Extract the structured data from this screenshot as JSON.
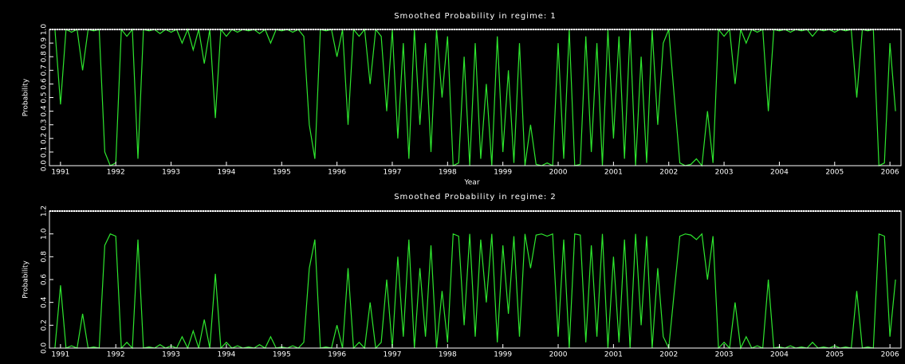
{
  "chart_data": [
    {
      "type": "line",
      "title": "Smoothed Probability in regime:  1",
      "x_label": "Year",
      "y_label": "Probability",
      "xlim": [
        1990.8,
        2006.2
      ],
      "ylim": [
        0,
        1
      ],
      "xticks": [
        1991,
        1992,
        1993,
        1994,
        1995,
        1996,
        1997,
        1998,
        1999,
        2000,
        2001,
        2002,
        2003,
        2004,
        2005,
        2006
      ],
      "yticks": [
        {
          "value": 0,
          "label": "0.0"
        },
        0.1,
        0.2,
        0.3,
        0.4,
        0.5,
        0.6,
        0.7,
        0.8,
        0.9,
        {
          "value": 1,
          "label": "1.0"
        }
      ],
      "x": [
        1990.9,
        1991.0,
        1991.1,
        1991.2,
        1991.3,
        1991.4,
        1991.5,
        1991.6,
        1991.7,
        1991.8,
        1991.9,
        1992.0,
        1992.1,
        1992.2,
        1992.3,
        1992.4,
        1992.5,
        1992.6,
        1992.7,
        1992.8,
        1992.9,
        1993.0,
        1993.1,
        1993.2,
        1993.3,
        1993.4,
        1993.5,
        1993.6,
        1993.7,
        1993.8,
        1993.9,
        1994.0,
        1994.1,
        1994.2,
        1994.3,
        1994.4,
        1994.5,
        1994.6,
        1994.7,
        1994.8,
        1994.9,
        1995.0,
        1995.1,
        1995.2,
        1995.3,
        1995.4,
        1995.5,
        1995.6,
        1995.7,
        1995.8,
        1995.9,
        1996.0,
        1996.1,
        1996.2,
        1996.3,
        1996.4,
        1996.5,
        1996.6,
        1996.7,
        1996.8,
        1996.9,
        1997.0,
        1997.1,
        1997.2,
        1997.3,
        1997.4,
        1997.5,
        1997.6,
        1997.7,
        1997.8,
        1997.9,
        1998.0,
        1998.1,
        1998.2,
        1998.3,
        1998.4,
        1998.5,
        1998.6,
        1998.7,
        1998.8,
        1998.9,
        1999.0,
        1999.1,
        1999.2,
        1999.3,
        1999.4,
        1999.5,
        1999.6,
        1999.7,
        1999.8,
        1999.9,
        2000.0,
        2000.1,
        2000.2,
        2000.3,
        2000.4,
        2000.5,
        2000.6,
        2000.7,
        2000.8,
        2000.9,
        2001.0,
        2001.1,
        2001.2,
        2001.3,
        2001.4,
        2001.5,
        2001.6,
        2001.7,
        2001.8,
        2001.9,
        2002.0,
        2002.1,
        2002.2,
        2002.3,
        2002.4,
        2002.5,
        2002.6,
        2002.7,
        2002.8,
        2002.9,
        2003.0,
        2003.1,
        2003.2,
        2003.3,
        2003.4,
        2003.5,
        2003.6,
        2003.7,
        2003.8,
        2003.9,
        2004.0,
        2004.1,
        2004.2,
        2004.3,
        2004.4,
        2004.5,
        2004.6,
        2004.7,
        2004.8,
        2004.9,
        2005.0,
        2005.1,
        2005.2,
        2005.3,
        2005.4,
        2005.5,
        2005.6,
        2005.7,
        2005.8,
        2005.9,
        2006.0,
        2006.1
      ],
      "series": [
        {
          "color": "#2ee62e",
          "values": [
            1,
            0.45,
            1,
            0.98,
            1,
            0.7,
            1,
            0.99,
            1,
            0.1,
            0,
            0.02,
            1,
            0.95,
            1,
            0.05,
            1,
            0.99,
            1,
            0.97,
            1,
            0.98,
            1,
            0.9,
            1,
            0.85,
            1,
            0.75,
            1,
            0.35,
            1,
            0.95,
            1,
            0.98,
            1,
            0.99,
            1,
            0.97,
            1,
            0.9,
            1,
            0.99,
            1,
            0.98,
            1,
            0.95,
            0.3,
            0.05,
            1,
            0.99,
            1,
            0.8,
            1,
            0.3,
            1,
            0.95,
            1,
            0.6,
            1,
            0.95,
            0.4,
            1,
            0.2,
            0.9,
            0.05,
            1,
            0.3,
            0.9,
            0.1,
            1,
            0.5,
            0.95,
            0,
            0.02,
            0.8,
            0,
            0.9,
            0.05,
            0.6,
            0,
            0.95,
            0.1,
            0.7,
            0.02,
            0.9,
            0,
            0.3,
            0.01,
            0,
            0.02,
            0,
            0.9,
            0.05,
            1,
            0,
            0.01,
            0.95,
            0.1,
            0.9,
            0,
            1,
            0.2,
            0.95,
            0.05,
            1,
            0,
            0.8,
            0.02,
            1,
            0.3,
            0.9,
            1,
            0.5,
            0.02,
            0,
            0.01,
            0.05,
            0,
            0.4,
            0.02,
            1,
            0.95,
            1,
            0.6,
            1,
            0.9,
            1,
            0.98,
            1,
            0.4,
            1,
            0.99,
            1,
            0.98,
            1,
            0.99,
            1,
            0.95,
            1,
            0.99,
            1,
            0.98,
            1,
            0.99,
            1,
            0.5,
            1,
            0.99,
            1,
            0,
            0.02,
            0.9,
            0.4
          ]
        }
      ]
    },
    {
      "type": "line",
      "title": "Smoothed Probability in regime:  2",
      "y_label": "Probability",
      "xlim": [
        1990.8,
        2006.2
      ],
      "ylim": [
        0,
        1.2
      ],
      "xticks": [
        1991,
        1992,
        1993,
        1994,
        1995,
        1996,
        1997,
        1998,
        1999,
        2000,
        2001,
        2002,
        2003,
        2004,
        2005,
        2006
      ],
      "yticks": [
        {
          "value": 0,
          "label": "0.0"
        },
        0.2,
        0.4,
        0.6,
        0.8,
        {
          "value": 1,
          "label": "1.0"
        },
        1.2
      ],
      "x": [
        1990.9,
        1991.0,
        1991.1,
        1991.2,
        1991.3,
        1991.4,
        1991.5,
        1991.6,
        1991.7,
        1991.8,
        1991.9,
        1992.0,
        1992.1,
        1992.2,
        1992.3,
        1992.4,
        1992.5,
        1992.6,
        1992.7,
        1992.8,
        1992.9,
        1993.0,
        1993.1,
        1993.2,
        1993.3,
        1993.4,
        1993.5,
        1993.6,
        1993.7,
        1993.8,
        1993.9,
        1994.0,
        1994.1,
        1994.2,
        1994.3,
        1994.4,
        1994.5,
        1994.6,
        1994.7,
        1994.8,
        1994.9,
        1995.0,
        1995.1,
        1995.2,
        1995.3,
        1995.4,
        1995.5,
        1995.6,
        1995.7,
        1995.8,
        1995.9,
        1996.0,
        1996.1,
        1996.2,
        1996.3,
        1996.4,
        1996.5,
        1996.6,
        1996.7,
        1996.8,
        1996.9,
        1997.0,
        1997.1,
        1997.2,
        1997.3,
        1997.4,
        1997.5,
        1997.6,
        1997.7,
        1997.8,
        1997.9,
        1998.0,
        1998.1,
        1998.2,
        1998.3,
        1998.4,
        1998.5,
        1998.6,
        1998.7,
        1998.8,
        1998.9,
        1999.0,
        1999.1,
        1999.2,
        1999.3,
        1999.4,
        1999.5,
        1999.6,
        1999.7,
        1999.8,
        1999.9,
        2000.0,
        2000.1,
        2000.2,
        2000.3,
        2000.4,
        2000.5,
        2000.6,
        2000.7,
        2000.8,
        2000.9,
        2001.0,
        2001.1,
        2001.2,
        2001.3,
        2001.4,
        2001.5,
        2001.6,
        2001.7,
        2001.8,
        2001.9,
        2002.0,
        2002.1,
        2002.2,
        2002.3,
        2002.4,
        2002.5,
        2002.6,
        2002.7,
        2002.8,
        2002.9,
        2003.0,
        2003.1,
        2003.2,
        2003.3,
        2003.4,
        2003.5,
        2003.6,
        2003.7,
        2003.8,
        2003.9,
        2004.0,
        2004.1,
        2004.2,
        2004.3,
        2004.4,
        2004.5,
        2004.6,
        2004.7,
        2004.8,
        2004.9,
        2005.0,
        2005.1,
        2005.2,
        2005.3,
        2005.4,
        2005.5,
        2005.6,
        2005.7,
        2005.8,
        2005.9,
        2006.0,
        2006.1
      ],
      "series": [
        {
          "color": "#2ee62e",
          "values": [
            0,
            0.55,
            0,
            0.02,
            0,
            0.3,
            0,
            0.01,
            0,
            0.9,
            1,
            0.98,
            0,
            0.05,
            0,
            0.95,
            0,
            0.01,
            0,
            0.03,
            0,
            0.02,
            0,
            0.1,
            0,
            0.15,
            0,
            0.25,
            0,
            0.65,
            0,
            0.05,
            0,
            0.02,
            0,
            0.01,
            0,
            0.03,
            0,
            0.1,
            0,
            0.01,
            0,
            0.02,
            0,
            0.05,
            0.7,
            0.95,
            0,
            0.01,
            0,
            0.2,
            0,
            0.7,
            0,
            0.05,
            0,
            0.4,
            0,
            0.05,
            0.6,
            0,
            0.8,
            0.1,
            0.95,
            0,
            0.7,
            0.1,
            0.9,
            0,
            0.5,
            0.05,
            1,
            0.98,
            0.2,
            1,
            0.1,
            0.95,
            0.4,
            1,
            0.05,
            0.9,
            0.3,
            0.98,
            0.1,
            1,
            0.7,
            0.99,
            1,
            0.98,
            1,
            0.1,
            0.95,
            0,
            1,
            0.99,
            0.05,
            0.9,
            0.1,
            1,
            0,
            0.8,
            0.05,
            0.95,
            0,
            1,
            0.2,
            0.98,
            0,
            0.7,
            0.1,
            0,
            0.5,
            0.98,
            1,
            0.99,
            0.95,
            1,
            0.6,
            0.98,
            0,
            0.05,
            0,
            0.4,
            0,
            0.1,
            0,
            0.02,
            0,
            0.6,
            0,
            0.01,
            0,
            0.02,
            0,
            0.01,
            0,
            0.05,
            0,
            0.01,
            0,
            0.02,
            0,
            0.01,
            0,
            0.5,
            0,
            0.01,
            0,
            1,
            0.98,
            0.1,
            0.6
          ]
        }
      ]
    }
  ]
}
